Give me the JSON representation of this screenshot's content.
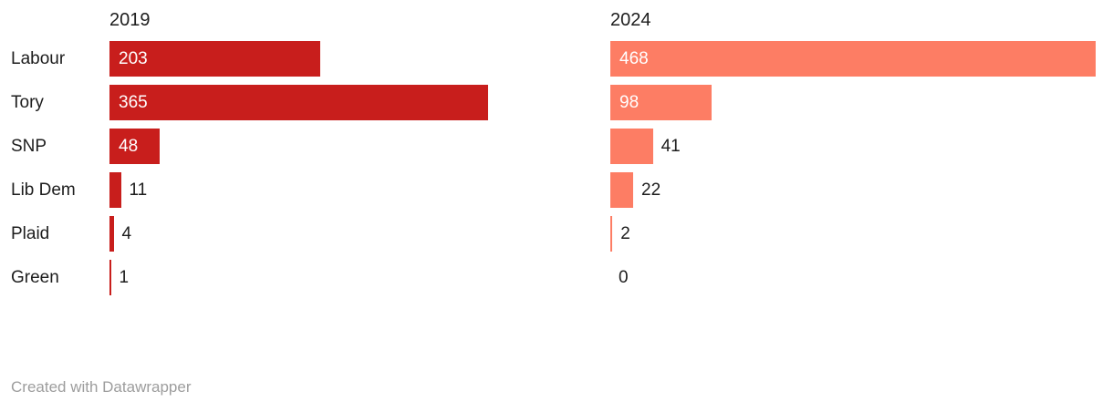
{
  "chart_data": {
    "type": "bar",
    "orientation": "horizontal",
    "categories": [
      "Labour",
      "Tory",
      "SNP",
      "Lib Dem",
      "Plaid",
      "Green"
    ],
    "series": [
      {
        "name": "2019",
        "color": "#c81e1c",
        "values": [
          203,
          365,
          48,
          11,
          4,
          1
        ]
      },
      {
        "name": "2024",
        "color": "#fd7d64",
        "values": [
          468,
          98,
          41,
          22,
          2,
          0
        ]
      }
    ],
    "xlim": [
      0,
      468
    ],
    "grid": false,
    "legend_position": "column headers above each panel",
    "value_labels": "inside bar when wide enough, otherwise right of bar"
  },
  "colors": {
    "background": "#ffffff",
    "text": "#1d1d1d",
    "value_inside": "#ffffff",
    "value_outside": "#1d1d1d",
    "footer": "#9d9d9d"
  },
  "footer": {
    "attribution": "Created with Datawrapper"
  }
}
